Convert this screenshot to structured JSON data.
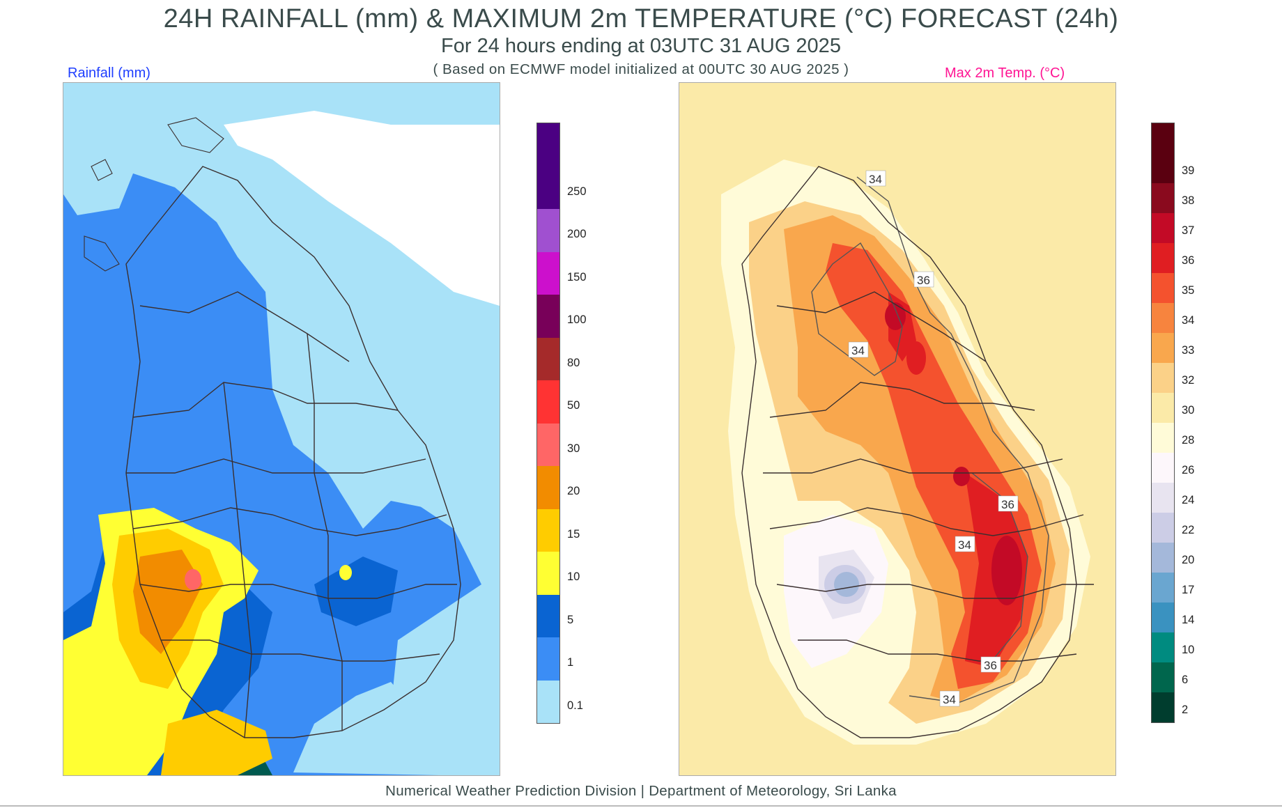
{
  "header": {
    "title": "24H RAINFALL (mm) & MAXIMUM 2m TEMPERATURE (°C) FORECAST (24h)",
    "subtitle": "For 24 hours ending at 03UTC 31 AUG 2025",
    "model_note": "( Based on ECMWF model initialized at 00UTC 30 AUG 2025 )"
  },
  "rainfall_panel": {
    "label": "Rainfall (mm)",
    "legend": [
      {
        "value": "0.1",
        "color": "#a9e2f8"
      },
      {
        "value": "1",
        "color": "#3b8df5"
      },
      {
        "value": "5",
        "color": "#0a64d2"
      },
      {
        "value": "10",
        "color": "#ffff33"
      },
      {
        "value": "15",
        "color": "#ffcc00"
      },
      {
        "value": "20",
        "color": "#f28c00"
      },
      {
        "value": "30",
        "color": "#ff6666"
      },
      {
        "value": "50",
        "color": "#ff3333"
      },
      {
        "value": "80",
        "color": "#a52a2a"
      },
      {
        "value": "100",
        "color": "#780059"
      },
      {
        "value": "150",
        "color": "#cc10cc"
      },
      {
        "value": "200",
        "color": "#a050d0"
      },
      {
        "value": "250",
        "color": "#4b0082"
      }
    ]
  },
  "temperature_panel": {
    "label": "Max 2m Temp. (°C)",
    "contour_labels": [
      "34",
      "36",
      "34",
      "36",
      "34",
      "36",
      "34"
    ],
    "legend": [
      {
        "value": "2",
        "color": "#003d2e"
      },
      {
        "value": "6",
        "color": "#00664d"
      },
      {
        "value": "10",
        "color": "#008b80"
      },
      {
        "value": "14",
        "color": "#3a92c0"
      },
      {
        "value": "17",
        "color": "#6aa6d0"
      },
      {
        "value": "20",
        "color": "#a4b8da"
      },
      {
        "value": "22",
        "color": "#cccde6"
      },
      {
        "value": "24",
        "color": "#e8e4f0"
      },
      {
        "value": "26",
        "color": "#fdf7fb"
      },
      {
        "value": "28",
        "color": "#fffbd8"
      },
      {
        "value": "30",
        "color": "#fbeaa8"
      },
      {
        "value": "32",
        "color": "#fbd188"
      },
      {
        "value": "33",
        "color": "#f9a74d"
      },
      {
        "value": "34",
        "color": "#f7843e"
      },
      {
        "value": "35",
        "color": "#f4522e"
      },
      {
        "value": "36",
        "color": "#e01e22"
      },
      {
        "value": "37",
        "color": "#c30a26"
      },
      {
        "value": "38",
        "color": "#8a0a1e"
      },
      {
        "value": "39",
        "color": "#5a0010"
      }
    ]
  },
  "footer": "Numerical Weather Prediction Division | Department of Meteorology, Sri Lanka"
}
